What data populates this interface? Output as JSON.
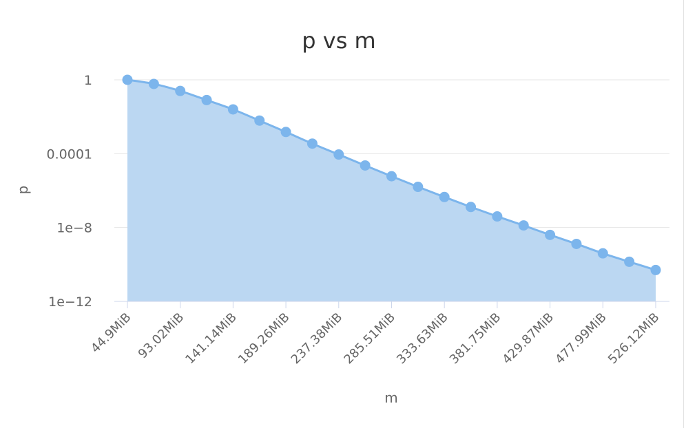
{
  "chart_data": {
    "type": "area",
    "title": "p vs m",
    "xlabel": "m",
    "ylabel": "p",
    "yscale": "log",
    "ylim": [
      1e-12,
      1
    ],
    "ytick_values": [
      1,
      0.0001,
      1e-08,
      1e-12
    ],
    "ytick_labels": [
      "1",
      "0.0001",
      "1e−8",
      "1e−12"
    ],
    "xtick_labels": [
      "44.9MiB",
      "93.02MiB",
      "141.14MiB",
      "189.26MiB",
      "237.38MiB",
      "285.51MiB",
      "333.63MiB",
      "381.75MiB",
      "429.87MiB",
      "477.99MiB",
      "526.12MiB"
    ],
    "x_unit": "MiB",
    "x": [
      44.9,
      68.96,
      93.02,
      117.08,
      141.14,
      165.2,
      189.26,
      213.32,
      237.38,
      261.44,
      285.51,
      309.57,
      333.63,
      357.69,
      381.75,
      405.81,
      429.87,
      453.93,
      477.99,
      502.05,
      526.12
    ],
    "values": [
      1,
      0.6,
      0.25,
      0.08,
      0.025,
      0.0062,
      0.0015,
      0.00035,
      9e-05,
      2.3e-05,
      6e-06,
      1.6e-06,
      4.5e-07,
      1.3e-07,
      4e-08,
      1.3e-08,
      4e-09,
      1.3e-09,
      4e-10,
      1.4e-10,
      5e-11
    ],
    "grid": true,
    "legend": "none",
    "colors": {
      "line": "#7cb5ec",
      "fill": "#bbd7f2",
      "point": "#7cb5ec",
      "grid": "#e6e6e6",
      "axis": "#ccd6eb"
    }
  }
}
